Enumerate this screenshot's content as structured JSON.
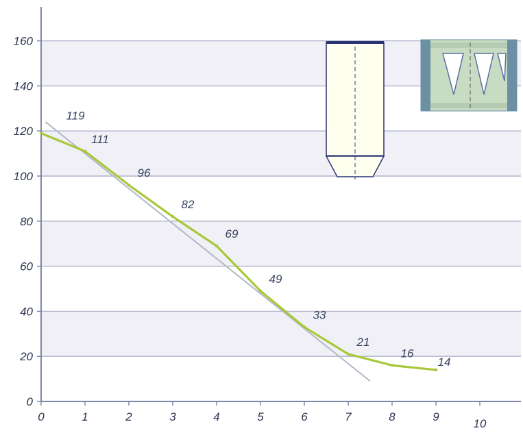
{
  "chart_data": {
    "type": "line",
    "title": "",
    "xlabel": "",
    "ylabel": "",
    "xlim": [
      0,
      11
    ],
    "ylim": [
      0,
      170
    ],
    "x_ticks": [
      0,
      1,
      2,
      3,
      4,
      5,
      6,
      7,
      8,
      9,
      10
    ],
    "y_ticks": [
      0,
      20,
      40,
      60,
      80,
      100,
      120,
      140,
      160
    ],
    "grid": "horizontal",
    "colors": {
      "curve": "#a8c83a",
      "trend": "#b3b7c7",
      "grid": "#aeb2cc",
      "band": "#f0f0f6",
      "axis": "#7e86a8",
      "inset_fill": "#fffff0",
      "inset_dark": "#2c3374",
      "inset2_fill": "#c8dcc4",
      "inset2_frame": "#6b8fa3"
    },
    "series": [
      {
        "x": [
          0,
          1,
          2,
          3,
          4,
          5,
          6,
          7,
          8,
          9
        ],
        "values": [
          119,
          111,
          96,
          82,
          69,
          49,
          33,
          21,
          16,
          14
        ],
        "labels": [
          "119",
          "111",
          "96",
          "82",
          "69",
          "49",
          "33",
          "21",
          "16",
          "14"
        ]
      }
    ],
    "trend_line": {
      "x": [
        0.1,
        7.5
      ],
      "y": [
        124,
        9
      ]
    }
  }
}
